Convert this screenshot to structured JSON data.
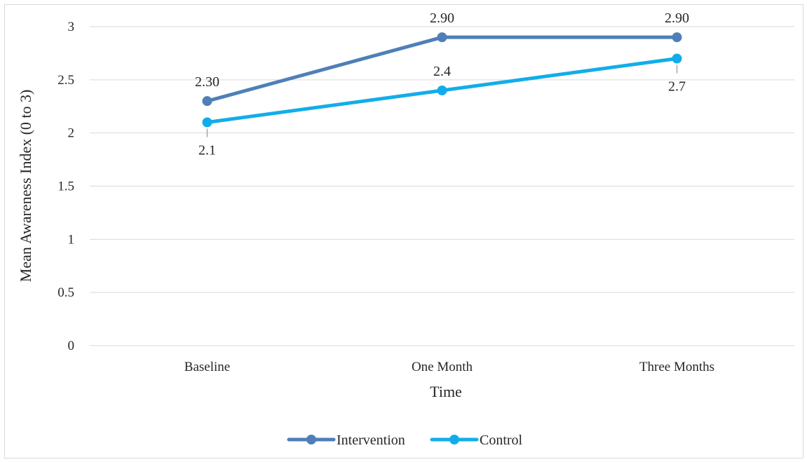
{
  "chart_data": {
    "type": "line",
    "title": "",
    "xlabel": "Time",
    "ylabel": "Mean Awareness Index (0 to 3)",
    "categories": [
      "Baseline",
      "One Month",
      "Three Months"
    ],
    "ylim": [
      0,
      3
    ],
    "yticks": [
      "0",
      "0.5",
      "1",
      "1.5",
      "2",
      "2.5",
      "3"
    ],
    "grid": true,
    "legend_position": "bottom",
    "series": [
      {
        "name": "Intervention",
        "color": "#4f7fb8",
        "values": [
          2.3,
          2.9,
          2.9
        ],
        "labels": [
          "2.30",
          "2.90",
          "2.90"
        ],
        "label_position": [
          "above",
          "above",
          "above"
        ]
      },
      {
        "name": "Control",
        "color": "#12ade9",
        "values": [
          2.1,
          2.4,
          2.7
        ],
        "labels": [
          "2.1",
          "2.4",
          "2.7"
        ],
        "label_position": [
          "below",
          "above",
          "below"
        ]
      }
    ]
  }
}
